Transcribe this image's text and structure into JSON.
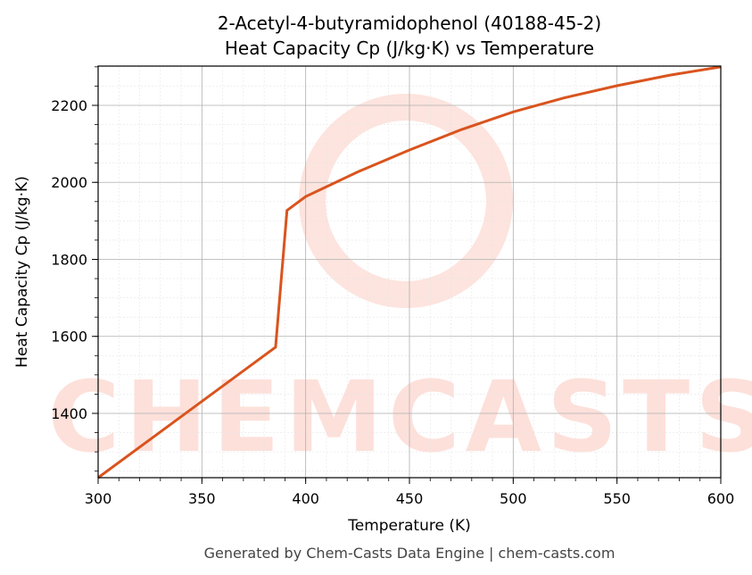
{
  "chart_data": {
    "type": "line",
    "title": "2-Acetyl-4-butyramidophenol (40188-45-2)",
    "subtitle": "Heat Capacity Cp (J/kg·K) vs Temperature",
    "x_label": "Temperature (K)",
    "y_label": "Heat Capacity Cp (J/kg·K)",
    "watermark": "CHEMCASTS",
    "footer": "Generated by Chem-Casts Data Engine | chem-casts.com",
    "x": [
      300,
      385.5,
      391,
      400,
      425,
      450,
      475,
      500,
      525,
      550,
      575,
      600
    ],
    "series": [
      {
        "name": "Cp",
        "color": "#d9541e",
        "values": [
          1233,
          1572,
          1927,
          1963,
          2027,
          2084,
          2137,
          2183,
          2220,
          2251,
          2278,
          2300
        ]
      }
    ],
    "xlim": [
      300,
      600
    ],
    "ylim": [
      1233,
      2302
    ],
    "xticks": [
      300,
      350,
      400,
      450,
      500,
      550,
      600
    ],
    "yticks": [
      1400,
      1600,
      1800,
      2000,
      2200
    ],
    "grid": true
  }
}
